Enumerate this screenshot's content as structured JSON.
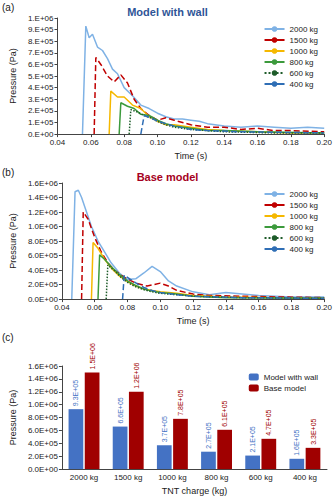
{
  "chart_data": [
    {
      "type": "line",
      "title": "Model with wall",
      "annotations": [
        "(a)"
      ],
      "x_label": "Time (s)",
      "y_label": "Pressure (Pa)",
      "xlim": [
        0.04,
        0.2
      ],
      "xticks": [
        0.04,
        0.06,
        0.08,
        {
          "value": 0.1,
          "label": "0.10"
        },
        0.12,
        0.14,
        0.16,
        0.18,
        {
          "value": 0.2,
          "label": "0.20"
        }
      ],
      "ylim": [
        0,
        1000000
      ],
      "yticks": [
        {
          "value": 0,
          "label": "0.E+00"
        },
        {
          "value": 100000,
          "label": "1.E+05"
        },
        {
          "value": 200000,
          "label": "2.E+05"
        },
        {
          "value": 300000,
          "label": "3.E+05"
        },
        {
          "value": 400000,
          "label": "4.E+05"
        },
        {
          "value": 500000,
          "label": "5.E+05"
        },
        {
          "value": 600000,
          "label": "6.E+05"
        },
        {
          "value": 700000,
          "label": "7.E+05"
        },
        {
          "value": 800000,
          "label": "8.E+05"
        },
        {
          "value": 900000,
          "label": "9.E+05"
        },
        {
          "value": 1000000,
          "label": "1.E+06"
        }
      ],
      "grid": false,
      "legend": "upper right",
      "marker": "none",
      "series": [
        {
          "name": "2000 kg",
          "color": "#7fb2e5",
          "line_style": "solid",
          "x": [
            0.055,
            0.057,
            0.059,
            0.061,
            0.064,
            0.067,
            0.07,
            0.073,
            0.076,
            0.08,
            0.085,
            0.09,
            0.095,
            0.1,
            0.105,
            0.11,
            0.115,
            0.12,
            0.125,
            0.13,
            0.14,
            0.15,
            0.16,
            0.17,
            0.18,
            0.19,
            0.2
          ],
          "values": [
            0,
            930000,
            830000,
            860000,
            750000,
            720000,
            650000,
            560000,
            520000,
            400000,
            330000,
            250000,
            220000,
            180000,
            150000,
            130000,
            130000,
            120000,
            110000,
            90000,
            70000,
            60000,
            70000,
            60000,
            50000,
            60000,
            50000
          ]
        },
        {
          "name": "1500 kg",
          "color": "#c00000",
          "line_style": "dashed",
          "x": [
            0.062,
            0.063,
            0.066,
            0.07,
            0.074,
            0.078,
            0.082,
            0.086,
            0.09,
            0.095,
            0.1,
            0.105,
            0.11,
            0.12,
            0.13,
            0.14,
            0.15,
            0.16,
            0.17,
            0.18,
            0.2
          ],
          "values": [
            0,
            660000,
            600000,
            500000,
            450000,
            510000,
            440000,
            300000,
            220000,
            160000,
            120000,
            140000,
            120000,
            80000,
            60000,
            60000,
            40000,
            50000,
            30000,
            30000,
            20000
          ]
        },
        {
          "name": "1000 kg",
          "color": "#f5b800",
          "line_style": "solid",
          "x": [
            0.071,
            0.072,
            0.076,
            0.08,
            0.085,
            0.09,
            0.095,
            0.1,
            0.105,
            0.11,
            0.12,
            0.13,
            0.14,
            0.16,
            0.18,
            0.2
          ],
          "values": [
            0,
            370000,
            320000,
            320000,
            250000,
            220000,
            150000,
            110000,
            80000,
            80000,
            60000,
            40000,
            30000,
            20000,
            10000,
            10000
          ]
        },
        {
          "name": "800 kg",
          "color": "#3c9a3c",
          "line_style": "solid",
          "x": [
            0.077,
            0.078,
            0.082,
            0.086,
            0.09,
            0.095,
            0.1,
            0.105,
            0.11,
            0.12,
            0.13,
            0.14,
            0.16,
            0.2
          ],
          "values": [
            0,
            270000,
            240000,
            220000,
            170000,
            160000,
            120000,
            90000,
            70000,
            50000,
            30000,
            30000,
            20000,
            10000
          ]
        },
        {
          "name": "600 kg",
          "color": "#1e5c2a",
          "line_style": "dotted",
          "x": [
            0.083,
            0.084,
            0.088,
            0.092,
            0.096,
            0.1,
            0.105,
            0.11,
            0.12,
            0.14,
            0.17,
            0.2
          ],
          "values": [
            0,
            210000,
            190000,
            160000,
            140000,
            110000,
            80000,
            60000,
            40000,
            20000,
            10000,
            10000
          ]
        },
        {
          "name": "400 kg",
          "color": "#2f6eb5",
          "line_style": "dashed",
          "x": [
            0.09,
            0.092,
            0.096,
            0.1,
            0.105,
            0.11,
            0.12,
            0.13,
            0.15,
            0.2
          ],
          "values": [
            0,
            160000,
            140000,
            110000,
            90000,
            70000,
            40000,
            30000,
            20000,
            10000
          ]
        }
      ]
    },
    {
      "type": "line",
      "title": "Base model",
      "annotations": [
        "(b)"
      ],
      "x_label": "Time (s)",
      "y_label": "Pressure (Pa)",
      "xlim": [
        0.04,
        0.2
      ],
      "xticks": [
        0.04,
        0.06,
        0.08,
        {
          "value": 0.1,
          "label": "0.10"
        },
        0.12,
        0.14,
        0.16,
        0.18,
        {
          "value": 0.2,
          "label": "0.20"
        }
      ],
      "ylim": [
        0,
        1600000
      ],
      "yticks": [
        {
          "value": 0,
          "label": "0.0E+00"
        },
        {
          "value": 200000,
          "label": "2.0E+05"
        },
        {
          "value": 400000,
          "label": "4.0E+05"
        },
        {
          "value": 600000,
          "label": "6.0E+05"
        },
        {
          "value": 800000,
          "label": "8.0E+05"
        },
        {
          "value": 1000000,
          "label": "1.0E+06"
        },
        {
          "value": 1200000,
          "label": "1.2E+06"
        },
        {
          "value": 1400000,
          "label": "1.4E+06"
        },
        {
          "value": 1600000,
          "label": "1.6E+06"
        }
      ],
      "grid": false,
      "legend": "upper right",
      "marker": "none",
      "series": [
        {
          "name": "2000 kg",
          "color": "#7fb2e5",
          "line_style": "solid",
          "x": [
            0.046,
            0.048,
            0.05,
            0.052,
            0.055,
            0.058,
            0.062,
            0.066,
            0.07,
            0.075,
            0.08,
            0.085,
            0.09,
            0.095,
            0.1,
            0.105,
            0.11,
            0.12,
            0.13,
            0.14,
            0.15,
            0.16,
            0.18,
            0.2
          ],
          "values": [
            0,
            1480000,
            1500000,
            1400000,
            1200000,
            1000000,
            800000,
            650000,
            500000,
            360000,
            270000,
            280000,
            360000,
            450000,
            380000,
            250000,
            180000,
            100000,
            60000,
            90000,
            70000,
            50000,
            30000,
            30000
          ]
        },
        {
          "name": "1500 kg",
          "color": "#c00000",
          "line_style": "dashed",
          "x": [
            0.052,
            0.053,
            0.056,
            0.06,
            0.064,
            0.068,
            0.072,
            0.078,
            0.085,
            0.092,
            0.1,
            0.105,
            0.11,
            0.12,
            0.13,
            0.15,
            0.17,
            0.2
          ],
          "values": [
            0,
            1200000,
            1100000,
            850000,
            650000,
            500000,
            400000,
            300000,
            220000,
            180000,
            220000,
            180000,
            120000,
            70000,
            50000,
            40000,
            30000,
            20000
          ]
        },
        {
          "name": "1000 kg",
          "color": "#f5b800",
          "line_style": "solid",
          "x": [
            0.058,
            0.059,
            0.062,
            0.066,
            0.07,
            0.075,
            0.08,
            0.085,
            0.09,
            0.095,
            0.1,
            0.11,
            0.12,
            0.14,
            0.17,
            0.2
          ],
          "values": [
            0,
            780000,
            700000,
            550000,
            430000,
            320000,
            240000,
            180000,
            140000,
            120000,
            100000,
            80000,
            50000,
            30000,
            20000,
            10000
          ]
        },
        {
          "name": "800 kg",
          "color": "#3c9a3c",
          "line_style": "solid",
          "x": [
            0.062,
            0.063,
            0.066,
            0.07,
            0.075,
            0.08,
            0.085,
            0.09,
            0.095,
            0.1,
            0.11,
            0.12,
            0.14,
            0.2
          ],
          "values": [
            0,
            610000,
            550000,
            450000,
            340000,
            250000,
            190000,
            140000,
            110000,
            90000,
            70000,
            40000,
            20000,
            10000
          ]
        },
        {
          "name": "600 kg",
          "color": "#1e5c2a",
          "line_style": "dotted",
          "x": [
            0.067,
            0.068,
            0.072,
            0.076,
            0.08,
            0.085,
            0.09,
            0.095,
            0.1,
            0.11,
            0.12,
            0.15,
            0.2
          ],
          "values": [
            0,
            470000,
            390000,
            300000,
            230000,
            170000,
            130000,
            100000,
            80000,
            60000,
            40000,
            20000,
            10000
          ]
        },
        {
          "name": "400 kg",
          "color": "#2f6eb5",
          "line_style": "dashed",
          "x": [
            0.077,
            0.078,
            0.082,
            0.086,
            0.09,
            0.095,
            0.1,
            0.11,
            0.12,
            0.15,
            0.2
          ],
          "values": [
            0,
            330000,
            270000,
            210000,
            160000,
            120000,
            90000,
            60000,
            40000,
            20000,
            10000
          ]
        }
      ]
    },
    {
      "type": "bar",
      "annotations": [
        "(c)"
      ],
      "x_label": "TNT charge (kg)",
      "y_label": "Pressure (Pa)",
      "categories": [
        "2000 kg",
        "1500 kg",
        "1000 kg",
        "800 kg",
        "600 kg",
        "400 kg"
      ],
      "ylim": [
        0,
        1600000
      ],
      "yticks": [
        {
          "value": 0,
          "label": "0.0E+00"
        },
        {
          "value": 200000,
          "label": "2.0E+05"
        },
        {
          "value": 400000,
          "label": "4.0E+05"
        },
        {
          "value": 600000,
          "label": "6.0E+05"
        },
        {
          "value": 800000,
          "label": "8.0E+05"
        },
        {
          "value": 1000000,
          "label": "1.0E+06"
        },
        {
          "value": 1200000,
          "label": "1.2E+06"
        },
        {
          "value": 1400000,
          "label": "1.4E+06"
        },
        {
          "value": 1600000,
          "label": "1.6E+06"
        }
      ],
      "grid": false,
      "legend": "upper right",
      "data_labels": true,
      "series": [
        {
          "name": "Model with wall",
          "color": "#4472c4",
          "values": [
            930000,
            660000,
            370000,
            270000,
            210000,
            160000
          ],
          "value_labels": [
            "9.3E+05",
            "6.6E+05",
            "3.7E+05",
            "2.7E+05",
            "2.1E+05",
            "1.6E+05"
          ]
        },
        {
          "name": "Base model",
          "color": "#a00000",
          "values": [
            1500000,
            1200000,
            780000,
            610000,
            470000,
            330000
          ],
          "value_labels": [
            "1.5E+06",
            "1.2E+06",
            "7.8E+05",
            "6.1E+05",
            "4.7E+05",
            "3.3E+05"
          ]
        }
      ]
    }
  ]
}
